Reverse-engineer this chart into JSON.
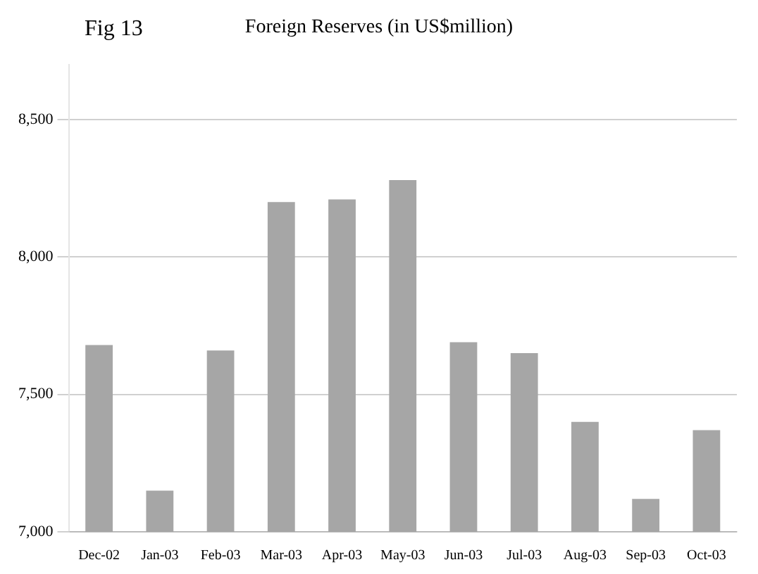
{
  "chart_data": {
    "type": "bar",
    "title": "Foreign Reserves (in US$million)",
    "annotations": [
      "Fig 13"
    ],
    "categories": [
      "Dec-02",
      "Jan-03",
      "Feb-03",
      "Mar-03",
      "Apr-03",
      "May-03",
      "Jun-03",
      "Jul-03",
      "Aug-03",
      "Sep-03",
      "Oct-03"
    ],
    "values": [
      7680,
      7150,
      7660,
      8200,
      8210,
      8280,
      7690,
      7650,
      7400,
      7120,
      7370
    ],
    "color": "#a6a6a6",
    "ylim": [
      7000,
      8700
    ],
    "yticks": [
      {
        "value": 7000,
        "label": "7,000"
      },
      {
        "value": 7500,
        "label": "7,500"
      },
      {
        "value": 8000,
        "label": "8,000"
      },
      {
        "value": 8500,
        "label": "8,500"
      }
    ],
    "grid": "y"
  }
}
